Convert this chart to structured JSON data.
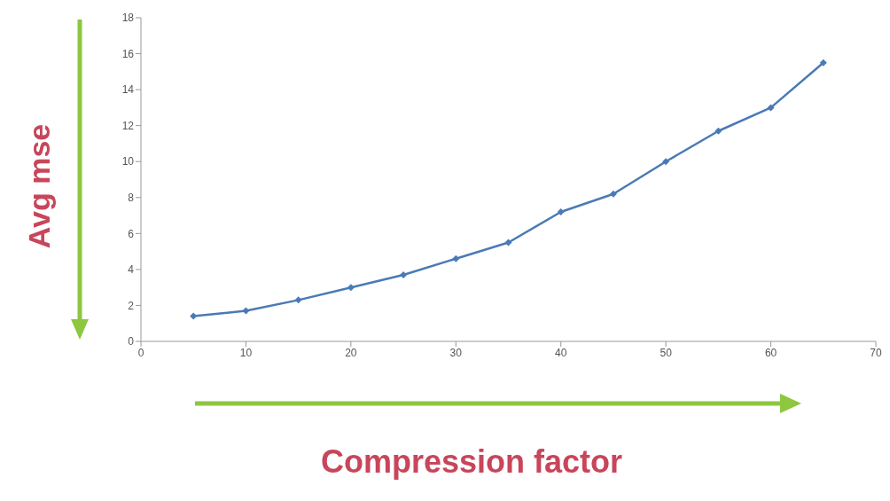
{
  "chart_data": {
    "type": "line",
    "xlabel": "Compression factor",
    "ylabel": "Avg mse",
    "x": [
      5,
      10,
      15,
      20,
      25,
      30,
      35,
      40,
      45,
      50,
      55,
      60,
      65
    ],
    "series": [
      {
        "color": "#4a7ab5",
        "values": [
          1.4,
          1.7,
          2.3,
          3.0,
          3.7,
          4.6,
          5.5,
          7.2,
          8.2,
          10.0,
          11.7,
          13.0,
          15.5
        ]
      }
    ],
    "xlim": [
      0,
      70
    ],
    "xticks": [
      0,
      10,
      20,
      30,
      40,
      50,
      60,
      70
    ],
    "ylim": [
      0,
      18
    ],
    "yticks": [
      0,
      2,
      4,
      6,
      8,
      10,
      12,
      14,
      16,
      18
    ],
    "grid": false,
    "legend": false,
    "marker": "diamond",
    "line_style": "solid"
  }
}
